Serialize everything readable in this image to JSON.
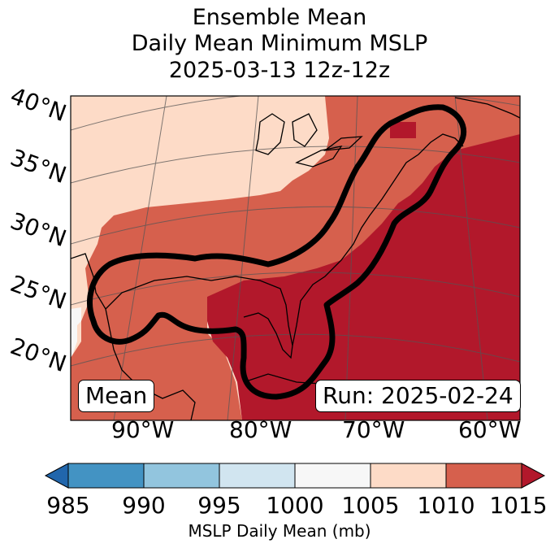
{
  "title": {
    "line1": "Ensemble Mean",
    "line2": "Daily Mean Minimum MSLP",
    "line3": "2025-03-13 12z-12z"
  },
  "latitude_labels": [
    "40°N",
    "35°N",
    "30°N",
    "25°N",
    "20°N"
  ],
  "longitude_labels": [
    "90°W",
    "80°W",
    "70°W",
    "60°W"
  ],
  "legend_box": "Mean",
  "run_box": "Run: 2025-02-24",
  "colorbar": {
    "label": "MSLP Daily Mean (mb)",
    "ticks": [
      "985",
      "990",
      "995",
      "1000",
      "1005",
      "1010",
      "1015"
    ],
    "colors": {
      "under": "#2166ac",
      "985-990": "#4393c3",
      "990-995": "#92c5de",
      "995-1000": "#d1e5f0",
      "1000-1005": "#f7f7f7",
      "1005-1010": "#fddbc7",
      "1010-1015": "#d6604d",
      "over": "#b2182b"
    }
  }
}
